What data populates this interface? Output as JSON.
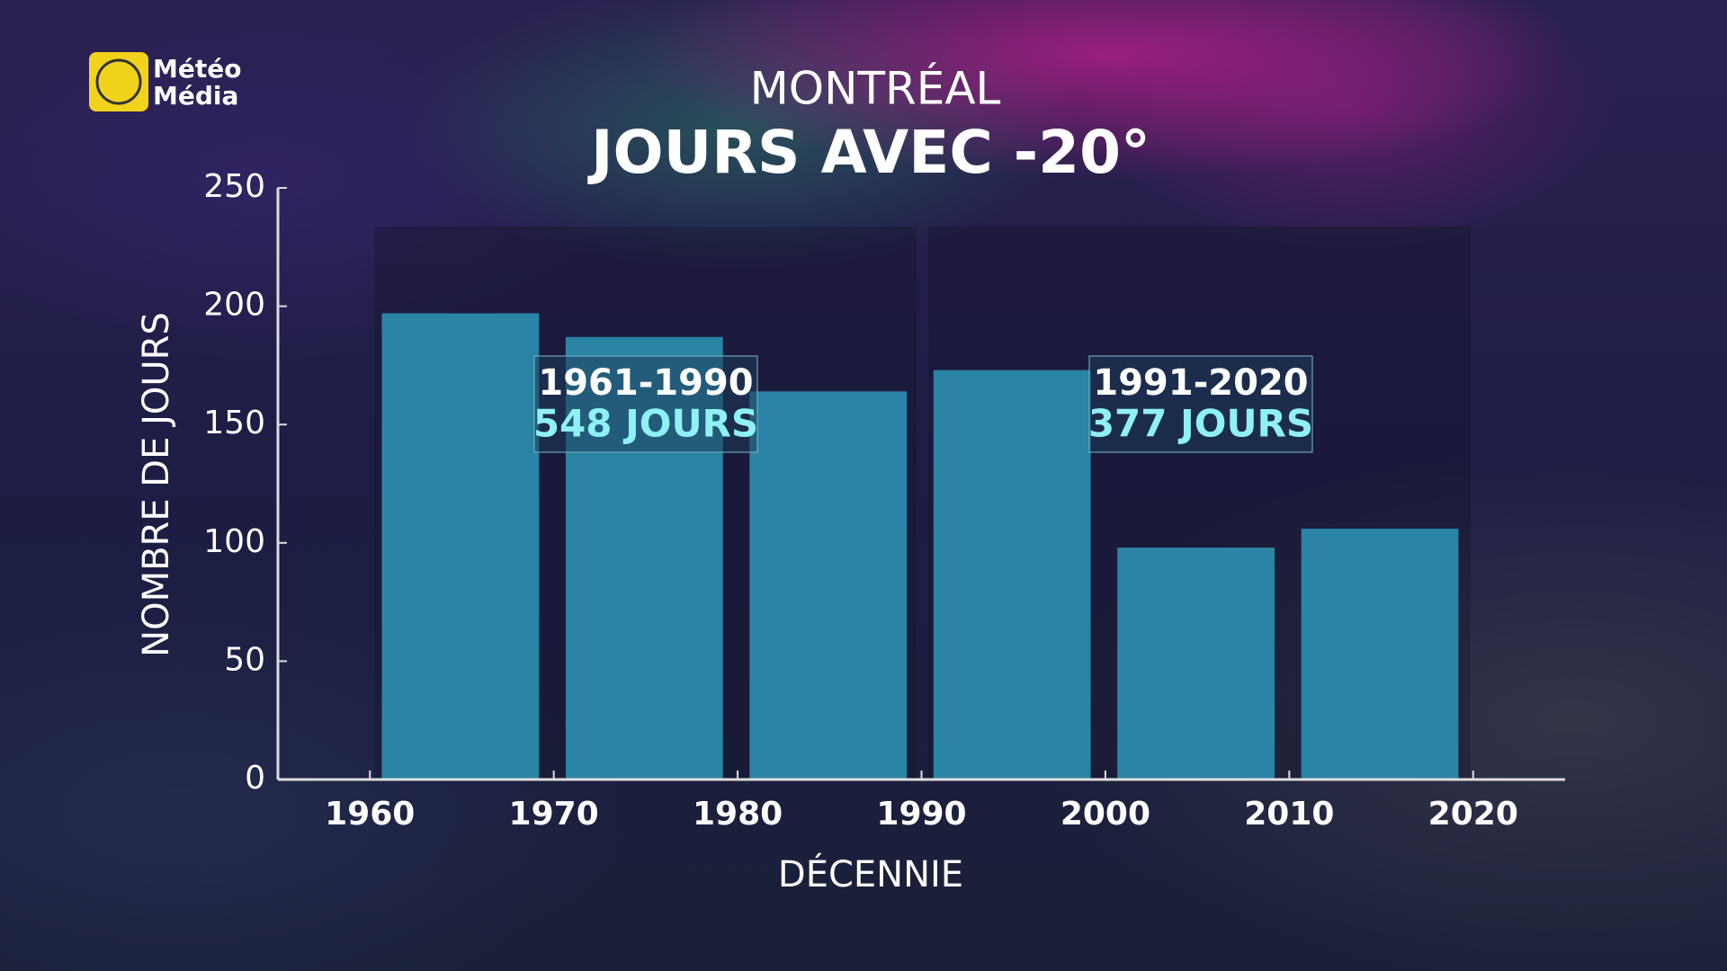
{
  "logo": {
    "line1": "Météo",
    "line2": "Média"
  },
  "chart_data": {
    "type": "bar",
    "title": "MONTRÉAL",
    "subtitle": "JOURS AVEC -20°",
    "x_label": "DÉCENNIE",
    "y_label": "NOMBRE DE JOURS",
    "x": [
      1960,
      1970,
      1980,
      1990,
      2000,
      2010
    ],
    "values": [
      197,
      187,
      164,
      173,
      98,
      106
    ],
    "color": "#2b8aab",
    "xlim": [
      1955,
      2025
    ],
    "xticks": [
      1960,
      1970,
      1980,
      1990,
      2000,
      2010,
      2020
    ],
    "ylim": [
      0,
      250
    ],
    "yticks": [
      0,
      50,
      100,
      150,
      200,
      250
    ],
    "annotations": [
      {
        "label": "1961-1990",
        "sublabel": "548 JOURS"
      },
      {
        "label": "1991-2020",
        "sublabel": "377 JOURS"
      }
    ]
  }
}
